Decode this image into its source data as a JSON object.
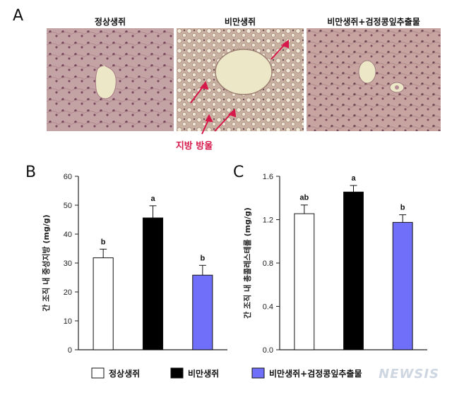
{
  "panels": {
    "a_letter": "A",
    "b_letter": "B",
    "c_letter": "C"
  },
  "histology": {
    "titles": [
      "정상생쥐",
      "비만생쥐",
      "비만생쥐+검정콩잎추출물"
    ],
    "annotation": "지방 방울",
    "annotation_color": "#d6184a"
  },
  "legend": {
    "items": [
      {
        "label": "정상생쥐",
        "color": "#ffffff"
      },
      {
        "label": "비만생쥐",
        "color": "#000000"
      },
      {
        "label": "비만생쥐+검정콩잎추출물",
        "color": "#6f6ffa"
      }
    ]
  },
  "watermark": "NEWSIS",
  "chart_data": [
    {
      "type": "bar",
      "panel": "B",
      "categories": [
        "정상생쥐",
        "비만생쥐",
        "비만생쥐+검정콩잎추출물"
      ],
      "values": [
        31.8,
        45.6,
        25.8
      ],
      "errors": [
        3.0,
        4.2,
        3.4
      ],
      "letters": [
        "b",
        "a",
        "b"
      ],
      "colors": [
        "#ffffff",
        "#000000",
        "#6f6ffa"
      ],
      "ylabel": "간 조직 내 중성지방 (mg/g)",
      "ylim": [
        0,
        60
      ],
      "yticks": [
        "0",
        "10",
        "20",
        "30",
        "40",
        "50",
        "60"
      ],
      "ytick_values": [
        0,
        10,
        20,
        30,
        40,
        50,
        60
      ]
    },
    {
      "type": "bar",
      "panel": "C",
      "categories": [
        "정상생쥐",
        "비만생쥐",
        "비만생쥐+검정콩잎추출물"
      ],
      "values": [
        1.255,
        1.455,
        1.175
      ],
      "errors": [
        0.08,
        0.06,
        0.07
      ],
      "letters": [
        "ab",
        "a",
        "b"
      ],
      "colors": [
        "#ffffff",
        "#000000",
        "#6f6ffa"
      ],
      "ylabel": "간 조직 내 총콜레스테롤 (mg/g)",
      "ylim": [
        0,
        1.6
      ],
      "yticks": [
        "0.0",
        "0.4",
        "0.8",
        "1.2",
        "1.6"
      ],
      "ytick_values": [
        0,
        0.4,
        0.8,
        1.2,
        1.6
      ]
    }
  ]
}
